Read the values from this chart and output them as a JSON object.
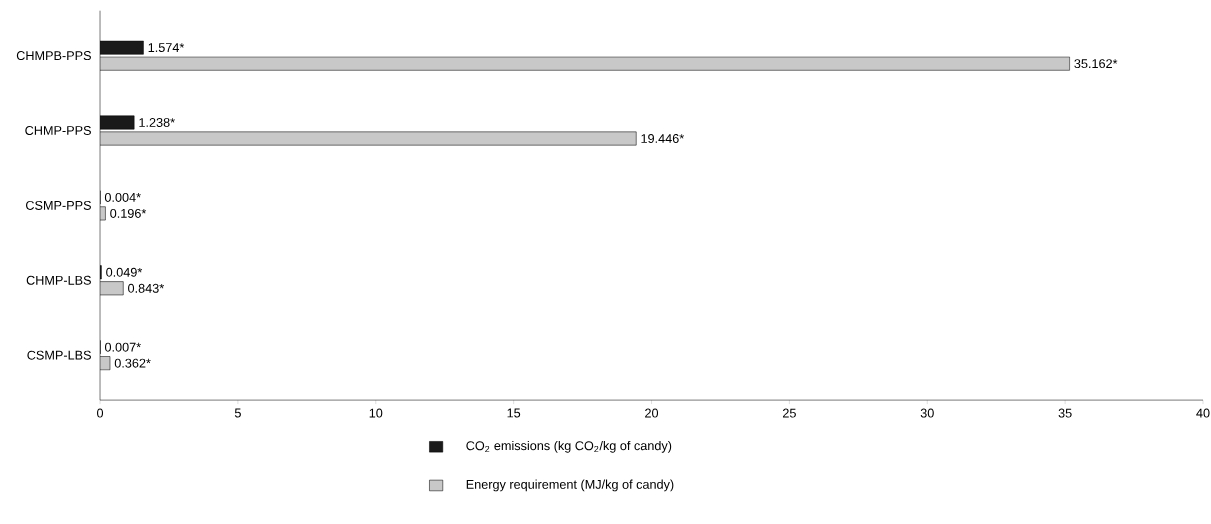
{
  "chart_data": {
    "type": "bar",
    "orientation": "horizontal",
    "categories": [
      "CHMPB-PPS",
      "CHMP-PPS",
      "CSMP-PPS",
      "CHMP-LBS",
      "CSMP-LBS"
    ],
    "series": [
      {
        "name": "CO$_{2}$ emissions (kg CO$_{2}$/kg of candy)",
        "color": "#1a1a1a",
        "values": [
          1.574,
          1.238,
          0.004,
          0.049,
          0.007
        ],
        "value_labels": [
          "1.574*",
          "1.238*",
          "0.004*",
          "0.049*",
          "0.007*"
        ]
      },
      {
        "name": "Energy requirement (MJ/kg of candy)",
        "color": "#c8c8c8",
        "values": [
          35.162,
          19.446,
          0.196,
          0.843,
          0.362
        ],
        "value_labels": [
          "35.162*",
          "19.446*",
          "0.196*",
          "0.843*",
          "0.362*"
        ]
      }
    ],
    "xlim": [
      0,
      40
    ],
    "xticks": [
      0,
      5,
      10,
      15,
      20,
      25,
      30,
      35,
      40
    ],
    "grid": false,
    "legend": "bottom"
  }
}
